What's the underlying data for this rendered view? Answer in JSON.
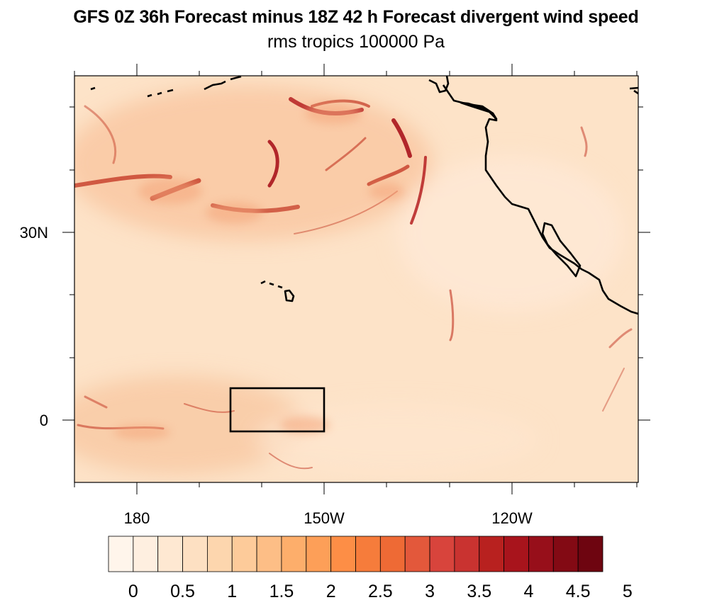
{
  "title": "GFS 0Z 36h Forecast minus 18Z 42 h Forecast divergent wind speed",
  "subtitle": "rms tropics 100000 Pa",
  "map": {
    "projection": "cylindrical-equidistant",
    "lon_range_east": [
      170,
      260
    ],
    "lat_range": [
      -10,
      55
    ],
    "x_tick_labels": [
      {
        "lon": 180,
        "label": "180"
      },
      {
        "lon": 210,
        "label": "150W"
      },
      {
        "lon": 240,
        "label": "120W"
      }
    ],
    "y_tick_labels": [
      {
        "lat": 30,
        "label": "30N"
      },
      {
        "lat": 0,
        "label": "0"
      }
    ],
    "region_box": {
      "lon": [
        185,
        210
      ],
      "lat": [
        -2,
        5
      ]
    },
    "field_colors": {
      "background": "#fde3c8",
      "streaks": "#a8141c"
    }
  },
  "colorbar": {
    "colors": [
      "#fff5eb",
      "#feefe0",
      "#fee8d2",
      "#fde0c2",
      "#fdd6ae",
      "#fdcb9a",
      "#fdbe86",
      "#fdae6b",
      "#fd9f58",
      "#fd8e46",
      "#f67c3b",
      "#ee6a35",
      "#e3583b",
      "#d8443c",
      "#c93330",
      "#b8211f",
      "#a8141c",
      "#970f1a",
      "#830a14",
      "#6e0510"
    ],
    "labels": [
      "0",
      "0.5",
      "1",
      "1.5",
      "2",
      "2.5",
      "3",
      "3.5",
      "4",
      "4.5",
      "5"
    ]
  }
}
